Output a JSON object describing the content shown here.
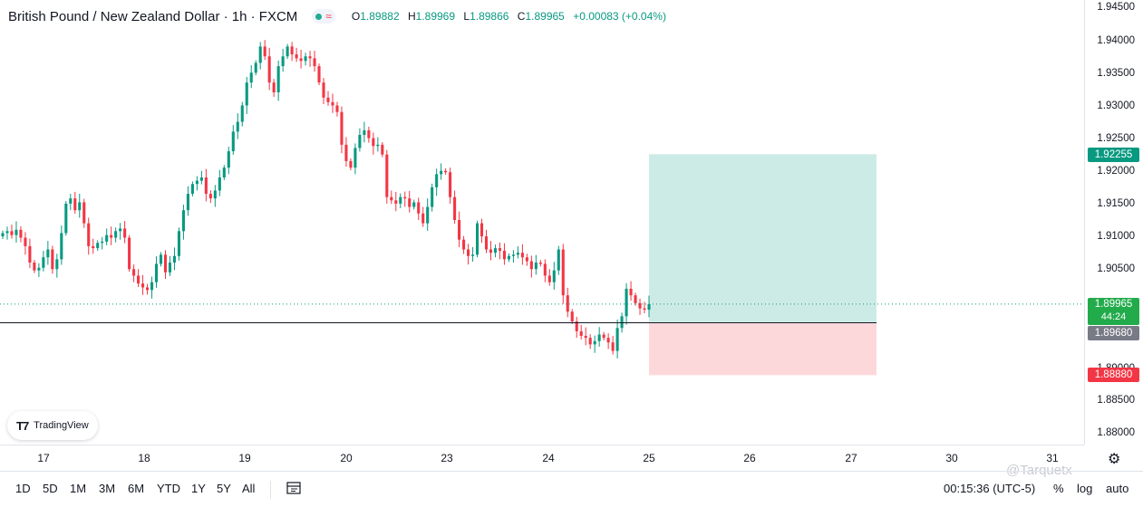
{
  "header": {
    "title": "British Pound / New Zealand Dollar · 1h · FXCM",
    "ohlc": [
      {
        "k": "O",
        "v": "1.89882"
      },
      {
        "k": "H",
        "v": "1.89969"
      },
      {
        "k": "L",
        "v": "1.89866"
      },
      {
        "k": "C",
        "v": "1.89965"
      }
    ],
    "change": "+0.00083 (+0.04%)"
  },
  "price_axis": {
    "ticks": [
      "1.94500",
      "1.94000",
      "1.93500",
      "1.93000",
      "1.92500",
      "1.92000",
      "1.91500",
      "1.91000",
      "1.90500",
      "1.90000",
      "1.89000",
      "1.88500",
      "1.88000"
    ],
    "badges": {
      "target": "1.92255",
      "current": "1.89965",
      "countdown": "44:24",
      "entry": "1.89680",
      "stop": "1.88880"
    }
  },
  "time_axis": {
    "labels": [
      "17",
      "18",
      "19",
      "20",
      "23",
      "24",
      "25",
      "26",
      "27",
      "30",
      "31"
    ]
  },
  "bottom_bar": {
    "ranges": [
      "1D",
      "5D",
      "1M",
      "3M",
      "6M",
      "YTD",
      "1Y",
      "5Y",
      "All"
    ],
    "clock": "00:15:36 (UTC-5)",
    "percent": "%",
    "log": "log",
    "auto": "auto"
  },
  "branding": {
    "logo_text": "TradingView",
    "watermark": "@Tarquetx"
  },
  "colors": {
    "up": "#089981",
    "down": "#f23645",
    "profit_zone": "#cdebe6",
    "loss_zone": "#fdd8db",
    "current_badge": "#22ab4b",
    "entry_badge": "#787b86"
  },
  "chart_data": {
    "type": "candlestick",
    "symbol": "GBPNZD",
    "interval": "1h",
    "ylim": [
      1.8775,
      1.946
    ],
    "x_labels": [
      "17",
      "18",
      "19",
      "20",
      "23",
      "24",
      "25",
      "26",
      "27",
      "30",
      "31"
    ],
    "position": {
      "type": "long",
      "entry": 1.8968,
      "target": 1.92255,
      "stop": 1.8888
    },
    "last_price": 1.89965,
    "closes": [
      1.9105,
      1.9108,
      1.9102,
      1.911,
      1.9098,
      1.9085,
      1.906,
      1.9048,
      1.9052,
      1.9068,
      1.908,
      1.905,
      1.9065,
      1.9105,
      1.915,
      1.9158,
      1.914,
      1.9152,
      1.912,
      1.9085,
      1.9082,
      1.909,
      1.9092,
      1.9102,
      1.9098,
      1.9108,
      1.9112,
      1.9098,
      1.905,
      1.904,
      1.9028,
      1.9022,
      1.9018,
      1.903,
      1.9058,
      1.9072,
      1.9045,
      1.906,
      1.907,
      1.9108,
      1.914,
      1.9165,
      1.918,
      1.9185,
      1.919,
      1.9165,
      1.9158,
      1.917,
      1.919,
      1.9205,
      1.923,
      1.926,
      1.9275,
      1.93,
      1.9335,
      1.935,
      1.9365,
      1.939,
      1.9375,
      1.9335,
      1.932,
      1.936,
      1.9375,
      1.939,
      1.9378,
      1.9372,
      1.9368,
      1.9375,
      1.9372,
      1.936,
      1.9335,
      1.9312,
      1.9305,
      1.93,
      1.929,
      1.924,
      1.9215,
      1.9205,
      1.9235,
      1.9255,
      1.9262,
      1.925,
      1.9238,
      1.924,
      1.9225,
      1.916,
      1.9155,
      1.915,
      1.916,
      1.9158,
      1.9145,
      1.9152,
      1.9135,
      1.912,
      1.9145,
      1.9175,
      1.9195,
      1.92,
      1.9198,
      1.916,
      1.9125,
      1.9095,
      1.908,
      1.907,
      1.9072,
      1.912,
      1.91,
      1.908,
      1.9075,
      1.9082,
      1.9078,
      1.9065,
      1.907,
      1.9072,
      1.9075,
      1.9068,
      1.9062,
      1.905,
      1.906,
      1.9058,
      1.904,
      1.903,
      1.9048,
      1.908,
      1.901,
      1.8985,
      1.897,
      1.8955,
      1.8948,
      1.8945,
      1.8935,
      1.894,
      1.895,
      1.8945,
      1.8938,
      1.8925,
      1.896,
      1.8978,
      1.902,
      1.901,
      1.8998,
      1.899,
      1.8988,
      1.89965
    ]
  }
}
